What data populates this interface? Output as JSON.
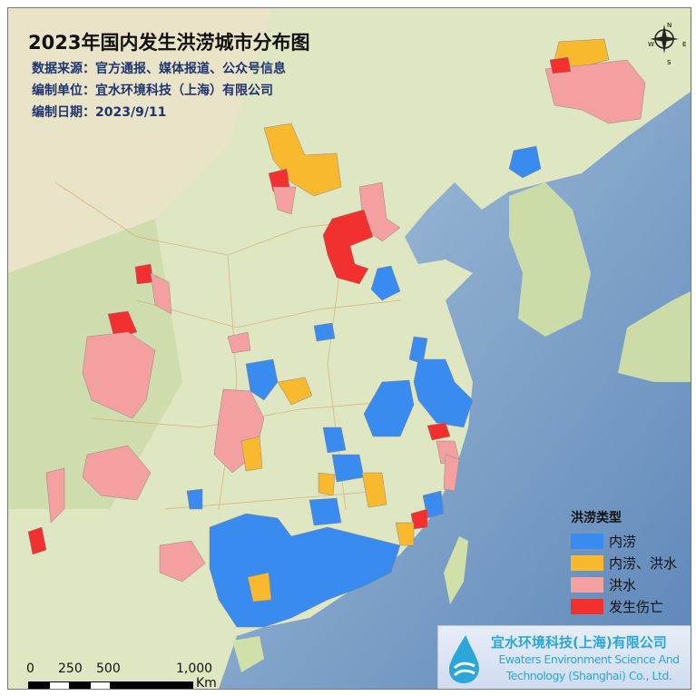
{
  "title": "2023年国内发生洪涝城市分布图",
  "meta": {
    "source": "数据来源：官方通报、媒体报道、公众号信息",
    "unit": "编制单位：宜水环境科技（上海）有限公司",
    "date": "编制日期：2023/9/11"
  },
  "legend": {
    "title": "洪涝类型",
    "items": [
      {
        "label": "内涝",
        "color": "#3a8bf0"
      },
      {
        "label": "内涝、洪水",
        "color": "#f9b92e"
      },
      {
        "label": "洪水",
        "color": "#f5a0a0"
      },
      {
        "label": "发生伤亡",
        "color": "#f23030"
      }
    ]
  },
  "logo": {
    "cn": "宜水环境科技(上海)有限公司",
    "en1": "Ewaters Environment Science And",
    "en2": "Technology (Shanghai) Co., Ltd."
  },
  "scale": {
    "ticks": [
      "0",
      "250",
      "500",
      "1,000"
    ],
    "unit": "Km"
  },
  "compass": {
    "n": "N",
    "e": "E",
    "s": "S",
    "w": "W"
  }
}
